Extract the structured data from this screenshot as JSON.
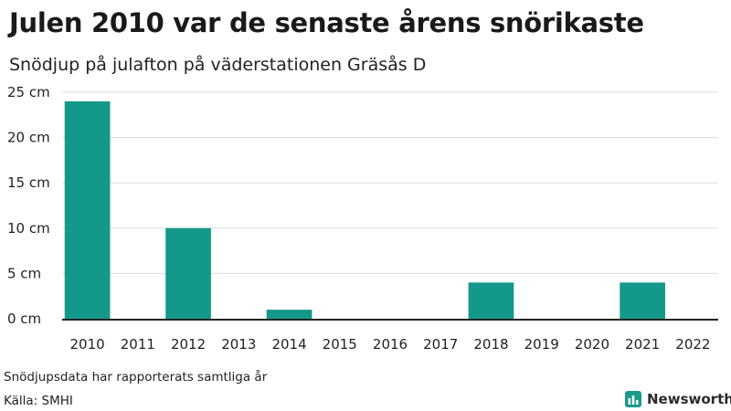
{
  "title": "Julen 2010 var de senaste årens snörikaste",
  "subtitle": "Snödjup på julafton på väderstationen Gräsås D",
  "note": "Snödjupsdata har rapporterats samtliga år",
  "source": "Källa: SMHI",
  "brand": {
    "name": "Newsworthy",
    "icon": "newsworthy-logo-icon",
    "color": "#1a9a8a"
  },
  "chart_data": {
    "type": "bar",
    "categories": [
      "2010",
      "2011",
      "2012",
      "2013",
      "2014",
      "2015",
      "2016",
      "2017",
      "2018",
      "2019",
      "2020",
      "2021",
      "2022"
    ],
    "values": [
      24,
      0,
      10,
      0,
      1,
      0,
      0,
      0,
      4,
      0,
      0,
      4,
      0
    ],
    "ylim": [
      0,
      25
    ],
    "yticks": [
      0,
      5,
      10,
      15,
      20,
      25
    ],
    "ytick_suffix": " cm",
    "grid": true,
    "bar_color": "#14988a"
  }
}
